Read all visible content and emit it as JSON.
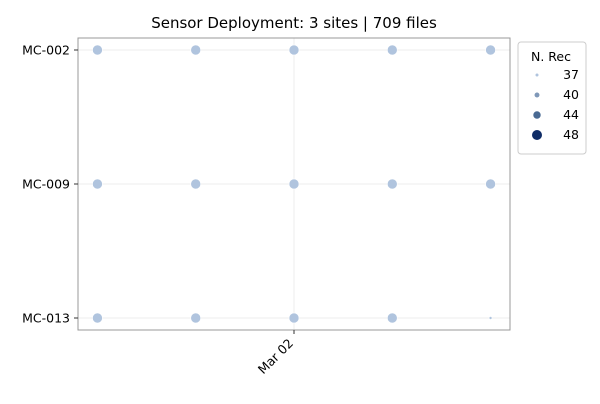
{
  "chart_data": {
    "type": "scatter",
    "title": "Sensor Deployment: 3 sites | 709 files",
    "xlabel": "",
    "ylabel": "",
    "y_categories": [
      "MC-002",
      "MC-009",
      "MC-013"
    ],
    "x_dates": [
      "2024-03-01T00:00",
      "2024-03-01T12:00",
      "2024-03-02T00:00",
      "2024-03-02T12:00",
      "2024-03-03T00:00"
    ],
    "x_ticks": [
      {
        "date": "2024-03-02T00:00",
        "label": "Mar 02"
      }
    ],
    "grid": true,
    "points": [
      {
        "site": "MC-002",
        "date": "2024-03-01T00:00",
        "n_rec": 48
      },
      {
        "site": "MC-002",
        "date": "2024-03-01T12:00",
        "n_rec": 48
      },
      {
        "site": "MC-002",
        "date": "2024-03-02T00:00",
        "n_rec": 48
      },
      {
        "site": "MC-002",
        "date": "2024-03-02T12:00",
        "n_rec": 48
      },
      {
        "site": "MC-002",
        "date": "2024-03-03T00:00",
        "n_rec": 48
      },
      {
        "site": "MC-009",
        "date": "2024-03-01T00:00",
        "n_rec": 48
      },
      {
        "site": "MC-009",
        "date": "2024-03-01T12:00",
        "n_rec": 48
      },
      {
        "site": "MC-009",
        "date": "2024-03-02T00:00",
        "n_rec": 48
      },
      {
        "site": "MC-009",
        "date": "2024-03-02T12:00",
        "n_rec": 48
      },
      {
        "site": "MC-009",
        "date": "2024-03-03T00:00",
        "n_rec": 48
      },
      {
        "site": "MC-013",
        "date": "2024-03-01T00:00",
        "n_rec": 48
      },
      {
        "site": "MC-013",
        "date": "2024-03-01T12:00",
        "n_rec": 48
      },
      {
        "site": "MC-013",
        "date": "2024-03-02T00:00",
        "n_rec": 48
      },
      {
        "site": "MC-013",
        "date": "2024-03-02T12:00",
        "n_rec": 48
      },
      {
        "site": "MC-013",
        "date": "2024-03-03T00:00",
        "n_rec": 37
      }
    ],
    "legend": {
      "title": "N. Rec",
      "placement": "upper-right-outside",
      "entries": [
        {
          "label": "37",
          "value": 37,
          "color": "#b0c4de"
        },
        {
          "label": "40",
          "value": 40,
          "color": "#7f98b8"
        },
        {
          "label": "44",
          "value": 44,
          "color": "#4a6a93"
        },
        {
          "label": "48",
          "value": 48,
          "color": "#0f2c66"
        }
      ]
    },
    "point_color": "#b0c4de"
  }
}
